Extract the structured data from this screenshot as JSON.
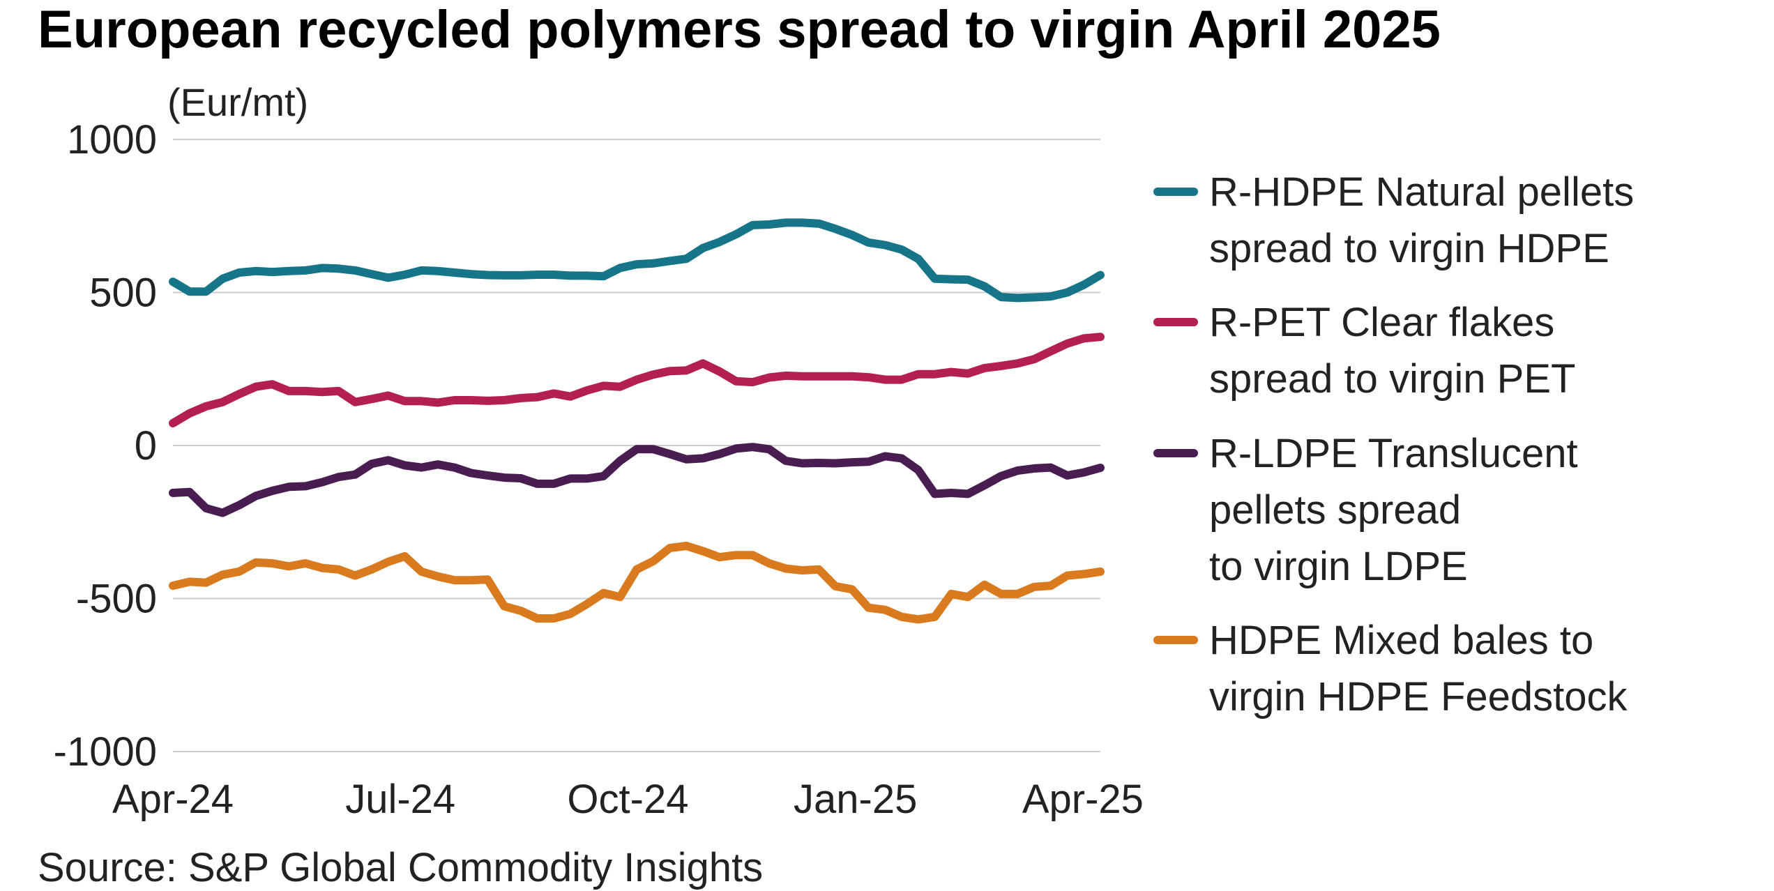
{
  "chart_data": {
    "type": "line",
    "title": "European recycled polymers spread to virgin April 2025",
    "ylabel": "(Eur/mt)",
    "xlabel": "",
    "ylim": [
      -1000,
      1000
    ],
    "yticks": [
      "1000",
      "500",
      "0",
      "-500",
      "-1000"
    ],
    "ytick_values": [
      1000,
      500,
      0,
      -500,
      -1000
    ],
    "xtick_labels": [
      "Apr-24",
      "Jul-24",
      "Oct-24",
      "Jan-25",
      "Apr-25"
    ],
    "xtick_positions": [
      0,
      13,
      26,
      39,
      52
    ],
    "x_range": [
      0,
      53
    ],
    "grid": true,
    "legend_position": "right",
    "series": [
      {
        "name": "R-HDPE Natural pellets spread to virgin HDPE",
        "legend_lines": [
          "R-HDPE Natural pellets",
          "spread to virgin HDPE"
        ],
        "color": "#17758a",
        "values": [
          535,
          503,
          503,
          545,
          565,
          570,
          567,
          570,
          572,
          580,
          578,
          572,
          560,
          548,
          558,
          572,
          570,
          565,
          560,
          557,
          556,
          556,
          558,
          558,
          555,
          555,
          553,
          580,
          592,
          595,
          603,
          610,
          645,
          665,
          690,
          720,
          722,
          728,
          728,
          725,
          708,
          688,
          663,
          655,
          640,
          610,
          545,
          543,
          542,
          520,
          485,
          482,
          484,
          487,
          500,
          525,
          557
        ]
      },
      {
        "name": "R-PET Clear flakes spread to virgin PET",
        "legend_lines": [
          "R-PET Clear flakes",
          "spread to virgin PET"
        ],
        "color": "#b3204f",
        "values": [
          73,
          105,
          128,
          142,
          168,
          192,
          200,
          178,
          178,
          175,
          178,
          142,
          152,
          163,
          145,
          145,
          140,
          148,
          148,
          146,
          148,
          155,
          158,
          170,
          160,
          180,
          195,
          192,
          215,
          232,
          243,
          245,
          268,
          242,
          210,
          207,
          222,
          228,
          226,
          226,
          226,
          226,
          223,
          215,
          215,
          233,
          233,
          240,
          235,
          253,
          260,
          268,
          282,
          308,
          333,
          350,
          355
        ]
      },
      {
        "name": "R-LDPE Translucent pellets spread to virgin LDPE",
        "legend_lines": [
          "R-LDPE Translucent",
          "pellets spread",
          "to virgin LDPE"
        ],
        "color": "#4a1d52",
        "values": [
          -155,
          -152,
          -205,
          -220,
          -195,
          -165,
          -148,
          -135,
          -133,
          -120,
          -103,
          -95,
          -60,
          -48,
          -65,
          -72,
          -62,
          -72,
          -90,
          -98,
          -105,
          -107,
          -125,
          -125,
          -108,
          -108,
          -100,
          -50,
          -12,
          -12,
          -28,
          -45,
          -42,
          -28,
          -10,
          -5,
          -12,
          -50,
          -58,
          -57,
          -58,
          -55,
          -53,
          -35,
          -42,
          -80,
          -158,
          -155,
          -158,
          -130,
          -100,
          -82,
          -75,
          -72,
          -98,
          -88,
          -73
        ]
      },
      {
        "name": "HDPE Mixed bales to virgin HDPE Feedstock",
        "legend_lines": [
          "HDPE Mixed bales to",
          "virgin HDPE Feedstock"
        ],
        "color": "#d97a1e",
        "values": [
          -458,
          -445,
          -448,
          -422,
          -412,
          -382,
          -385,
          -395,
          -385,
          -400,
          -405,
          -425,
          -405,
          -380,
          -362,
          -412,
          -428,
          -440,
          -440,
          -438,
          -525,
          -540,
          -565,
          -565,
          -550,
          -518,
          -482,
          -495,
          -405,
          -378,
          -335,
          -328,
          -345,
          -365,
          -358,
          -358,
          -385,
          -402,
          -408,
          -405,
          -460,
          -470,
          -530,
          -537,
          -560,
          -568,
          -560,
          -485,
          -495,
          -455,
          -485,
          -485,
          -462,
          -458,
          -425,
          -420,
          -412
        ]
      }
    ]
  },
  "source": "Source: S&P Global Commodity Insights"
}
